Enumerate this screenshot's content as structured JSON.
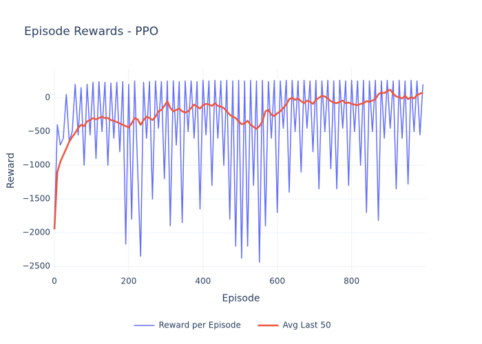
{
  "chart_data": {
    "type": "line",
    "title": "Episode Rewards - PPO",
    "xlabel": "Episode",
    "ylabel": "Reward",
    "x": [
      0,
      8,
      16,
      24,
      32,
      40,
      48,
      56,
      64,
      72,
      80,
      88,
      96,
      104,
      112,
      120,
      128,
      136,
      144,
      152,
      160,
      168,
      176,
      184,
      192,
      200,
      208,
      216,
      224,
      232,
      240,
      248,
      256,
      264,
      272,
      280,
      288,
      296,
      304,
      312,
      320,
      328,
      336,
      344,
      352,
      360,
      368,
      376,
      384,
      392,
      400,
      408,
      416,
      424,
      432,
      440,
      448,
      456,
      464,
      472,
      480,
      488,
      496,
      504,
      512,
      520,
      528,
      536,
      544,
      552,
      560,
      568,
      576,
      584,
      592,
      600,
      608,
      616,
      624,
      632,
      640,
      648,
      656,
      664,
      672,
      680,
      688,
      696,
      704,
      712,
      720,
      728,
      736,
      744,
      752,
      760,
      768,
      776,
      784,
      792,
      800,
      808,
      816,
      824,
      832,
      840,
      848,
      856,
      864,
      872,
      880,
      888,
      896,
      904,
      912,
      920,
      928,
      936,
      944,
      952,
      960,
      968,
      976,
      984,
      992
    ],
    "series": [
      {
        "name": "Reward per Episode",
        "color": "#636efa",
        "width": 1.5,
        "values": [
          -1900,
          -400,
          -700,
          -600,
          50,
          -650,
          -500,
          200,
          -550,
          150,
          -1000,
          200,
          -550,
          230,
          -900,
          240,
          -500,
          230,
          -1000,
          220,
          -600,
          230,
          -800,
          240,
          -2170,
          200,
          -1800,
          250,
          -1050,
          -2350,
          230,
          -600,
          240,
          -1500,
          250,
          -450,
          240,
          -1200,
          250,
          -1900,
          250,
          -700,
          240,
          -1850,
          250,
          -500,
          250,
          -600,
          240,
          -1650,
          260,
          -550,
          250,
          -1300,
          260,
          -600,
          250,
          -1000,
          260,
          -1800,
          250,
          -2200,
          260,
          -2380,
          250,
          -2200,
          260,
          -1300,
          250,
          -2440,
          260,
          -1900,
          240,
          -600,
          260,
          -1700,
          250,
          -450,
          260,
          -1400,
          260,
          -500,
          250,
          -1100,
          260,
          -450,
          250,
          -800,
          260,
          -1350,
          250,
          -500,
          260,
          -1050,
          250,
          -1350,
          260,
          -450,
          250,
          -1300,
          260,
          -500,
          250,
          -1000,
          260,
          -1700,
          250,
          -500,
          260,
          -1820,
          250,
          -600,
          260,
          -450,
          250,
          -1350,
          260,
          -600,
          250,
          -1280,
          260,
          -500,
          250,
          -550,
          200
        ]
      },
      {
        "name": "Avg Last 50",
        "color": "#ef553b",
        "width": 2.5,
        "values": [
          -1950,
          -1100,
          -950,
          -850,
          -750,
          -650,
          -580,
          -520,
          -450,
          -400,
          -420,
          -350,
          -330,
          -300,
          -320,
          -300,
          -280,
          -300,
          -300,
          -330,
          -340,
          -360,
          -380,
          -400,
          -420,
          -440,
          -380,
          -300,
          -320,
          -400,
          -330,
          -280,
          -300,
          -330,
          -280,
          -200,
          -180,
          -120,
          -50,
          -150,
          -200,
          -180,
          -160,
          -200,
          -220,
          -200,
          -150,
          -100,
          -130,
          -160,
          -110,
          -90,
          -100,
          -120,
          -80,
          -120,
          -130,
          -150,
          -200,
          -250,
          -280,
          -300,
          -350,
          -390,
          -380,
          -340,
          -400,
          -430,
          -460,
          -420,
          -350,
          -200,
          -180,
          -250,
          -270,
          -230,
          -200,
          -150,
          -100,
          -20,
          0,
          -30,
          -10,
          -50,
          -80,
          -40,
          -60,
          -90,
          -30,
          0,
          30,
          20,
          -10,
          -50,
          -70,
          -80,
          -60,
          -40,
          -80,
          -70,
          -90,
          -100,
          -110,
          -90,
          -80,
          -50,
          -60,
          -40,
          -20,
          50,
          80,
          70,
          100,
          120,
          60,
          20,
          10,
          -10,
          30,
          -20,
          10,
          -10,
          40,
          60,
          80
        ]
      }
    ],
    "xlim": [
      0,
      999
    ],
    "ylim": [
      -2600,
      430
    ],
    "xticks": [
      0,
      200,
      400,
      600,
      800
    ],
    "yticks": [
      {
        "value": -2500,
        "label": "−2500"
      },
      {
        "value": -2000,
        "label": "−2000"
      },
      {
        "value": -1500,
        "label": "−1500"
      },
      {
        "value": -1000,
        "label": "−1000"
      },
      {
        "value": -500,
        "label": "−500"
      },
      0
    ],
    "grid": true,
    "legend": "bottom"
  }
}
